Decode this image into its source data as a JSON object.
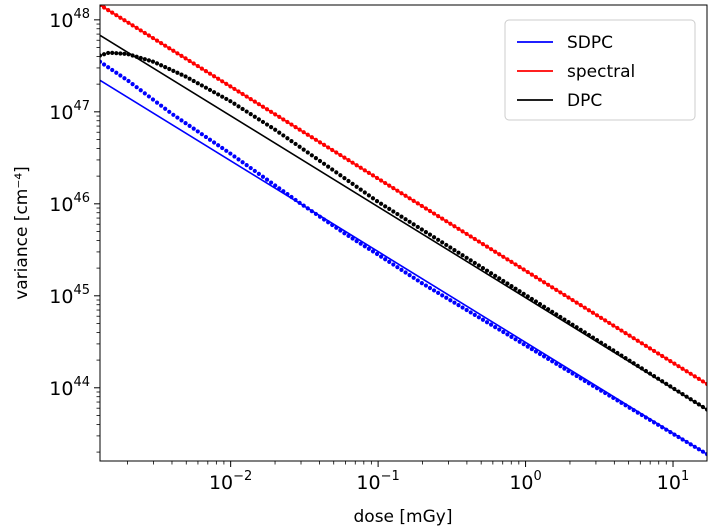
{
  "chart_data": {
    "type": "line",
    "title": "",
    "xlabel": "dose [mGy]",
    "ylabel": "variance [cm⁻⁴]",
    "xscale": "log",
    "yscale": "log",
    "xlim": [
      0.0013,
      17
    ],
    "ylim": [
      1.6e+43,
      1.45e+48
    ],
    "grid": false,
    "legend_position": "top-right",
    "x_ticks": [
      {
        "base": "10",
        "exp": "−2",
        "value": 0.01
      },
      {
        "base": "10",
        "exp": "−1",
        "value": 0.1
      },
      {
        "base": "10",
        "exp": "0",
        "value": 1
      },
      {
        "base": "10",
        "exp": "1",
        "value": 10
      }
    ],
    "y_ticks": [
      {
        "base": "10",
        "exp": "44",
        "value": 1e+44
      },
      {
        "base": "10",
        "exp": "45",
        "value": 1e+45
      },
      {
        "base": "10",
        "exp": "46",
        "value": 1e+46
      },
      {
        "base": "10",
        "exp": "47",
        "value": 1e+47
      },
      {
        "base": "10",
        "exp": "48",
        "value": 1e+48
      }
    ],
    "series": [
      {
        "name": "SDPC",
        "color": "#0000ff",
        "style": "solid",
        "points": [
          [
            0.0013,
            2.2e+47
          ],
          [
            17,
            1.9e+43
          ]
        ]
      },
      {
        "name": "spectral",
        "color": "#ff0000",
        "style": "solid",
        "points": [
          [
            0.0013,
            1.45e+48
          ],
          [
            17,
            1.1e+44
          ]
        ]
      },
      {
        "name": "DPC",
        "color": "#000000",
        "style": "solid",
        "points": [
          [
            0.0013,
            6.8e+47
          ],
          [
            17,
            5.8e+43
          ]
        ]
      },
      {
        "name": "SDPC (dotted)",
        "color": "#0000ff",
        "style": "dotted",
        "points": [
          [
            0.0013,
            3.5e+47
          ],
          [
            0.002,
            2.2e+47
          ],
          [
            0.004,
            9.5e+46
          ],
          [
            0.01,
            3.5e+46
          ],
          [
            0.03,
            1e+46
          ],
          [
            0.06,
            4.7e+45
          ],
          [
            0.1,
            2.8e+45
          ],
          [
            0.2,
            1.36e+45
          ],
          [
            17,
            1.9e+43
          ]
        ]
      },
      {
        "name": "spectral (dotted)",
        "color": "#ff0000",
        "style": "dotted",
        "points": [
          [
            0.0013,
            1.45e+48
          ],
          [
            17,
            1.1e+44
          ]
        ]
      },
      {
        "name": "DPC (dotted)",
        "color": "#000000",
        "style": "dotted",
        "points": [
          [
            0.0013,
            4.1e+47
          ],
          [
            0.0015,
            4.4e+47
          ],
          [
            0.002,
            4.25e+47
          ],
          [
            0.003,
            3.5e+47
          ],
          [
            0.005,
            2.4e+47
          ],
          [
            0.01,
            1.3e+47
          ],
          [
            0.02,
            6.4e+46
          ],
          [
            0.05,
            2.3e+46
          ],
          [
            0.1,
            1.05e+46
          ],
          [
            0.2,
            5.2e+45
          ],
          [
            17,
            5.8e+43
          ]
        ]
      }
    ],
    "legend": [
      {
        "label": "SDPC",
        "color": "#0000ff"
      },
      {
        "label": "spectral",
        "color": "#ff0000"
      },
      {
        "label": "DPC",
        "color": "#000000"
      }
    ]
  }
}
